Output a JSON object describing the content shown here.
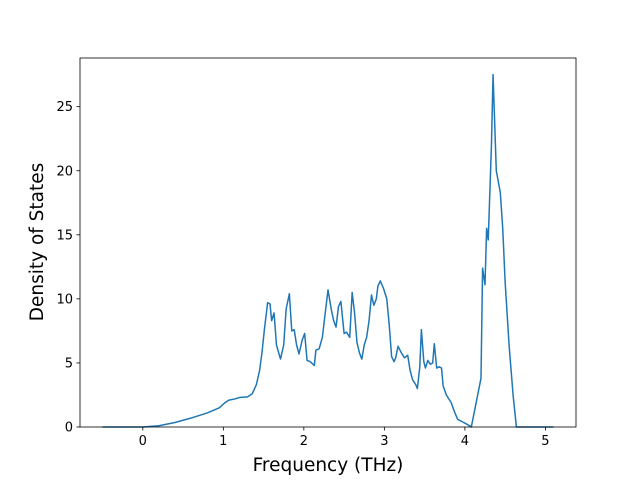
{
  "chart_data": {
    "type": "line",
    "xlabel": "Frequency (THz)",
    "ylabel": "Density of States",
    "xlim": [
      -0.78,
      5.38
    ],
    "ylim": [
      0,
      28.8
    ],
    "xticks": [
      0,
      1,
      2,
      3,
      4,
      5
    ],
    "yticks": [
      0,
      5,
      10,
      15,
      20,
      25
    ],
    "grid": false,
    "series": [
      {
        "color": "#1f77b4",
        "x": [
          -0.5,
          0,
          0.2,
          0.4,
          0.6,
          0.8,
          0.95,
          1.02,
          1.07,
          1.15,
          1.2,
          1.3,
          1.36,
          1.41,
          1.45,
          1.48,
          1.51,
          1.55,
          1.58,
          1.6,
          1.63,
          1.66,
          1.71,
          1.75,
          1.78,
          1.82,
          1.85,
          1.88,
          1.91,
          1.94,
          1.98,
          2.01,
          2.04,
          2.08,
          2.13,
          2.15,
          2.19,
          2.23,
          2.26,
          2.3,
          2.34,
          2.37,
          2.4,
          2.43,
          2.46,
          2.5,
          2.53,
          2.57,
          2.6,
          2.63,
          2.66,
          2.69,
          2.72,
          2.75,
          2.78,
          2.81,
          2.84,
          2.87,
          2.9,
          2.92,
          2.95,
          2.99,
          3.03,
          3.06,
          3.09,
          3.12,
          3.14,
          3.17,
          3.21,
          3.25,
          3.29,
          3.32,
          3.35,
          3.39,
          3.41,
          3.44,
          3.46,
          3.49,
          3.51,
          3.54,
          3.57,
          3.6,
          3.62,
          3.65,
          3.68,
          3.71,
          3.73,
          3.77,
          3.83,
          3.87,
          3.91,
          3.97,
          4.03,
          4.08,
          4.2,
          4.22,
          4.25,
          4.27,
          4.29,
          4.33,
          4.35,
          4.39,
          4.44,
          4.47,
          4.5,
          4.55,
          4.6,
          4.64,
          5.1
        ],
        "values": [
          0,
          0,
          0.1,
          0.35,
          0.7,
          1.1,
          1.5,
          1.9,
          2.1,
          2.2,
          2.3,
          2.35,
          2.6,
          3.3,
          4.4,
          5.8,
          7.6,
          9.7,
          9.6,
          8.3,
          8.9,
          6.4,
          5.3,
          6.4,
          9.2,
          10.4,
          7.5,
          7.6,
          6.4,
          5.7,
          6.8,
          7.3,
          5.2,
          5.1,
          4.8,
          6.0,
          6.1,
          7.0,
          8.6,
          10.7,
          9.2,
          8.3,
          7.8,
          9.4,
          9.8,
          7.3,
          7.4,
          7.0,
          10.5,
          8.9,
          6.6,
          5.8,
          5.3,
          6.4,
          7.0,
          8.3,
          10.3,
          9.5,
          10.0,
          11.0,
          11.4,
          10.8,
          10.0,
          8.0,
          5.5,
          5.1,
          5.4,
          6.3,
          5.8,
          5.4,
          5.6,
          4.4,
          3.7,
          3.3,
          3.0,
          4.7,
          7.6,
          5.1,
          4.6,
          5.2,
          4.9,
          5.0,
          6.5,
          4.6,
          4.7,
          4.6,
          3.2,
          2.5,
          1.9,
          1.2,
          0.6,
          0.4,
          0.2,
          0,
          3.8,
          12.4,
          11.1,
          15.5,
          14.6,
          22,
          27.5,
          20,
          18.3,
          15.5,
          11.3,
          6.3,
          2.4,
          0,
          0
        ]
      }
    ]
  }
}
